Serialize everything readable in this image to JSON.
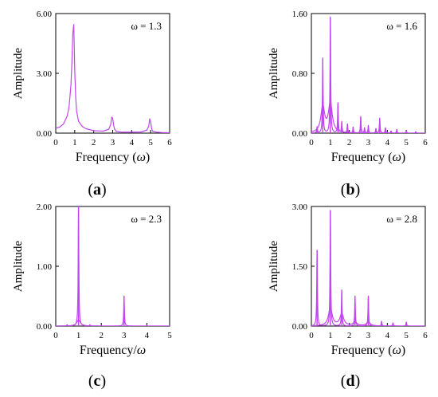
{
  "colors": {
    "line": "#c246f0",
    "axis": "#000000",
    "background": "#ffffff"
  },
  "chart_data": [
    {
      "panel_label_letter": "a",
      "type": "line",
      "annotation": "ω = 1.3",
      "xlabel_prefix": "Frequency (",
      "xlabel_symbol": "ω",
      "xlabel_suffix": ")",
      "ylabel": "Amplitude",
      "xlim": [
        0,
        6
      ],
      "ylim": [
        0,
        6
      ],
      "xticks": [
        0,
        1,
        2,
        3,
        4,
        5,
        6
      ],
      "yticks": [
        0,
        3,
        6
      ],
      "ytick_labels": [
        "0.00",
        "3.00",
        "6.00"
      ],
      "series": [
        {
          "x": [
            0,
            0.2,
            0.4,
            0.6,
            0.7,
            0.8,
            0.85,
            0.9,
            0.95,
            1.0,
            1.05,
            1.1,
            1.2,
            1.4,
            1.6,
            2.0,
            2.5,
            2.8,
            2.9,
            2.95,
            3.0,
            3.05,
            3.1,
            3.2,
            3.5,
            4.0,
            4.5,
            4.8,
            4.9,
            4.95,
            5.0,
            5.05,
            5.1,
            5.3,
            5.6,
            6.0
          ],
          "y": [
            0.25,
            0.3,
            0.45,
            0.85,
            1.3,
            2.4,
            3.5,
            5.0,
            5.45,
            3.2,
            1.8,
            1.1,
            0.6,
            0.33,
            0.22,
            0.12,
            0.1,
            0.2,
            0.45,
            0.8,
            0.75,
            0.4,
            0.2,
            0.08,
            0.05,
            0.05,
            0.06,
            0.15,
            0.35,
            0.72,
            0.55,
            0.25,
            0.1,
            0.05,
            0.03,
            0.02
          ]
        }
      ]
    },
    {
      "panel_label_letter": "b",
      "type": "line",
      "annotation": "ω = 1.6",
      "xlabel_prefix": "Frequency (",
      "xlabel_symbol": "ω",
      "xlabel_suffix": ")",
      "ylabel": "Amplitude",
      "xlim": [
        0,
        6
      ],
      "ylim": [
        0,
        1.6
      ],
      "xticks": [
        0,
        1,
        2,
        3,
        4,
        5,
        6
      ],
      "yticks": [
        0,
        0.8,
        1.6
      ],
      "ytick_labels": [
        "0.00",
        "0.80",
        "1.60"
      ],
      "peaks": [
        [
          0.3,
          0.08
        ],
        [
          0.6,
          1.0
        ],
        [
          1.0,
          1.55
        ],
        [
          1.4,
          0.4
        ],
        [
          1.6,
          0.15
        ],
        [
          1.9,
          0.12
        ],
        [
          2.2,
          0.08
        ],
        [
          2.6,
          0.22
        ],
        [
          2.8,
          0.07
        ],
        [
          3.0,
          0.1
        ],
        [
          3.4,
          0.06
        ],
        [
          3.6,
          0.2
        ],
        [
          3.9,
          0.07
        ],
        [
          4.2,
          0.03
        ],
        [
          4.5,
          0.05
        ],
        [
          5.0,
          0.03
        ],
        [
          5.5,
          0.02
        ]
      ],
      "secondary_peaks": [
        [
          1.0,
          0.4
        ],
        [
          0.6,
          0.35
        ]
      ]
    },
    {
      "panel_label_letter": "c",
      "type": "line",
      "annotation": "ω = 2.3",
      "xlabel_prefix": "Frequency/",
      "xlabel_symbol": "ω",
      "xlabel_suffix": "",
      "ylabel": "Amplitude",
      "xlim": [
        0,
        5
      ],
      "ylim": [
        0,
        2
      ],
      "xticks": [
        0,
        1,
        2,
        3,
        4,
        5
      ],
      "yticks": [
        0,
        1,
        2
      ],
      "ytick_labels": [
        "0.00",
        "1.00",
        "2.00"
      ],
      "peaks": [
        [
          1.0,
          2.0
        ],
        [
          3.0,
          0.5
        ],
        [
          0.5,
          0.02
        ],
        [
          1.5,
          0.02
        ]
      ],
      "secondary_peaks": [
        [
          1.0,
          0.1
        ]
      ]
    },
    {
      "panel_label_letter": "d",
      "type": "line",
      "annotation": "ω = 2.8",
      "xlabel_prefix": "Frequency (",
      "xlabel_symbol": "ω",
      "xlabel_suffix": ")",
      "ylabel": "Amplitude",
      "xlim": [
        0,
        6
      ],
      "ylim": [
        0,
        3
      ],
      "xticks": [
        0,
        1,
        2,
        3,
        4,
        5,
        6
      ],
      "yticks": [
        0,
        1.5,
        3
      ],
      "ytick_labels": [
        "0.00",
        "1.50",
        "3.00"
      ],
      "peaks": [
        [
          0.3,
          1.9
        ],
        [
          1.0,
          2.9
        ],
        [
          1.6,
          0.9
        ],
        [
          2.3,
          0.75
        ],
        [
          3.0,
          0.75
        ],
        [
          3.7,
          0.12
        ],
        [
          4.3,
          0.08
        ],
        [
          5.0,
          0.1
        ]
      ],
      "secondary_peaks": [
        [
          1.0,
          0.45
        ],
        [
          1.6,
          0.3
        ],
        [
          2.3,
          0.1
        ],
        [
          3.0,
          0.1
        ]
      ]
    }
  ]
}
